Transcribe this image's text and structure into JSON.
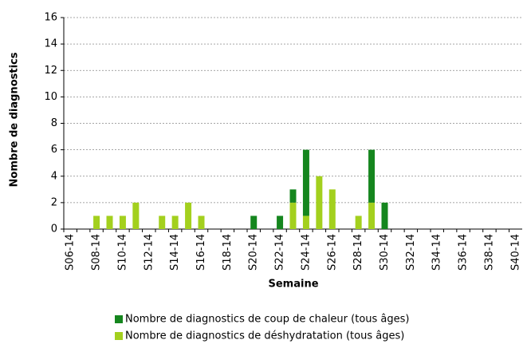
{
  "chart_data": {
    "type": "stacked_bar",
    "x_label": "Semaine",
    "y_label": "Nombre de diagnostics",
    "categories": [
      "S06-14",
      null,
      "S08-14",
      null,
      "S10-14",
      null,
      "S12-14",
      null,
      "S14-14",
      null,
      "S16-14",
      null,
      "S18-14",
      null,
      "S20-14",
      null,
      "S22-14",
      null,
      "S24-14",
      null,
      "S26-14",
      null,
      "S28-14",
      null,
      "S30-14",
      null,
      "S32-14",
      null,
      "S34-14",
      null,
      "S36-14",
      null,
      "S38-14",
      null,
      "S40-14"
    ],
    "series": [
      {
        "name": "Nombre de diagnostics de coup de chaleur (tous âges)",
        "color": "#15861e",
        "values": [
          0,
          0,
          0,
          0,
          0,
          0,
          0,
          0,
          0,
          0,
          0,
          0,
          0,
          0,
          1,
          0,
          1,
          1,
          5,
          0,
          0,
          0,
          0,
          4,
          2,
          0,
          0,
          0,
          0,
          0,
          0,
          0,
          0,
          0,
          0
        ]
      },
      {
        "name": "Nombre de diagnostics de déshydratation (tous âges)",
        "color": "#a3d01e",
        "values": [
          0,
          0,
          1,
          1,
          1,
          2,
          0,
          1,
          1,
          2,
          1,
          0,
          0,
          0,
          0,
          0,
          0,
          2,
          1,
          4,
          3,
          0,
          1,
          2,
          0,
          0,
          0,
          0,
          0,
          0,
          0,
          0,
          0,
          0,
          0
        ]
      }
    ],
    "ylim": [
      0,
      16
    ],
    "yticks": [
      0,
      2,
      4,
      6,
      8,
      10,
      12,
      14,
      16
    ],
    "grid": true
  }
}
